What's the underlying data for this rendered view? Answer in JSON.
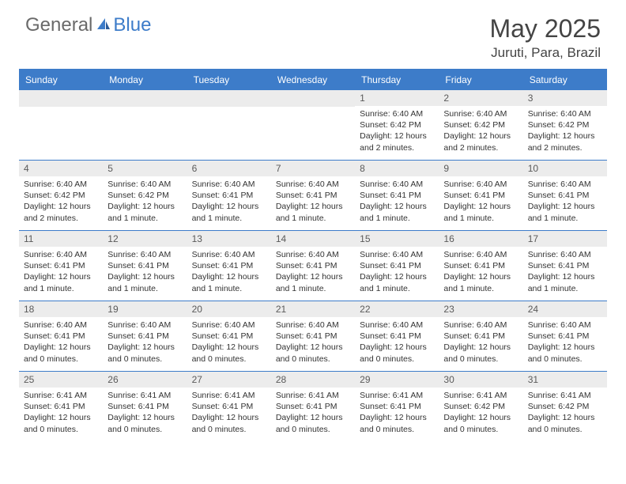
{
  "logo": {
    "text1": "General",
    "text2": "Blue"
  },
  "title": "May 2025",
  "location": "Juruti, Para, Brazil",
  "colors": {
    "accent": "#3d7cc9",
    "header_text": "#444444",
    "logo_gray": "#6a6a6a",
    "day_bg": "#ececec",
    "body_text": "#333333",
    "background": "#ffffff"
  },
  "weekdays": [
    "Sunday",
    "Monday",
    "Tuesday",
    "Wednesday",
    "Thursday",
    "Friday",
    "Saturday"
  ],
  "weeks": [
    [
      {
        "num": "",
        "sunrise": "",
        "sunset": "",
        "daylight1": "",
        "daylight2": ""
      },
      {
        "num": "",
        "sunrise": "",
        "sunset": "",
        "daylight1": "",
        "daylight2": ""
      },
      {
        "num": "",
        "sunrise": "",
        "sunset": "",
        "daylight1": "",
        "daylight2": ""
      },
      {
        "num": "",
        "sunrise": "",
        "sunset": "",
        "daylight1": "",
        "daylight2": ""
      },
      {
        "num": "1",
        "sunrise": "Sunrise: 6:40 AM",
        "sunset": "Sunset: 6:42 PM",
        "daylight1": "Daylight: 12 hours",
        "daylight2": "and 2 minutes."
      },
      {
        "num": "2",
        "sunrise": "Sunrise: 6:40 AM",
        "sunset": "Sunset: 6:42 PM",
        "daylight1": "Daylight: 12 hours",
        "daylight2": "and 2 minutes."
      },
      {
        "num": "3",
        "sunrise": "Sunrise: 6:40 AM",
        "sunset": "Sunset: 6:42 PM",
        "daylight1": "Daylight: 12 hours",
        "daylight2": "and 2 minutes."
      }
    ],
    [
      {
        "num": "4",
        "sunrise": "Sunrise: 6:40 AM",
        "sunset": "Sunset: 6:42 PM",
        "daylight1": "Daylight: 12 hours",
        "daylight2": "and 2 minutes."
      },
      {
        "num": "5",
        "sunrise": "Sunrise: 6:40 AM",
        "sunset": "Sunset: 6:42 PM",
        "daylight1": "Daylight: 12 hours",
        "daylight2": "and 1 minute."
      },
      {
        "num": "6",
        "sunrise": "Sunrise: 6:40 AM",
        "sunset": "Sunset: 6:41 PM",
        "daylight1": "Daylight: 12 hours",
        "daylight2": "and 1 minute."
      },
      {
        "num": "7",
        "sunrise": "Sunrise: 6:40 AM",
        "sunset": "Sunset: 6:41 PM",
        "daylight1": "Daylight: 12 hours",
        "daylight2": "and 1 minute."
      },
      {
        "num": "8",
        "sunrise": "Sunrise: 6:40 AM",
        "sunset": "Sunset: 6:41 PM",
        "daylight1": "Daylight: 12 hours",
        "daylight2": "and 1 minute."
      },
      {
        "num": "9",
        "sunrise": "Sunrise: 6:40 AM",
        "sunset": "Sunset: 6:41 PM",
        "daylight1": "Daylight: 12 hours",
        "daylight2": "and 1 minute."
      },
      {
        "num": "10",
        "sunrise": "Sunrise: 6:40 AM",
        "sunset": "Sunset: 6:41 PM",
        "daylight1": "Daylight: 12 hours",
        "daylight2": "and 1 minute."
      }
    ],
    [
      {
        "num": "11",
        "sunrise": "Sunrise: 6:40 AM",
        "sunset": "Sunset: 6:41 PM",
        "daylight1": "Daylight: 12 hours",
        "daylight2": "and 1 minute."
      },
      {
        "num": "12",
        "sunrise": "Sunrise: 6:40 AM",
        "sunset": "Sunset: 6:41 PM",
        "daylight1": "Daylight: 12 hours",
        "daylight2": "and 1 minute."
      },
      {
        "num": "13",
        "sunrise": "Sunrise: 6:40 AM",
        "sunset": "Sunset: 6:41 PM",
        "daylight1": "Daylight: 12 hours",
        "daylight2": "and 1 minute."
      },
      {
        "num": "14",
        "sunrise": "Sunrise: 6:40 AM",
        "sunset": "Sunset: 6:41 PM",
        "daylight1": "Daylight: 12 hours",
        "daylight2": "and 1 minute."
      },
      {
        "num": "15",
        "sunrise": "Sunrise: 6:40 AM",
        "sunset": "Sunset: 6:41 PM",
        "daylight1": "Daylight: 12 hours",
        "daylight2": "and 1 minute."
      },
      {
        "num": "16",
        "sunrise": "Sunrise: 6:40 AM",
        "sunset": "Sunset: 6:41 PM",
        "daylight1": "Daylight: 12 hours",
        "daylight2": "and 1 minute."
      },
      {
        "num": "17",
        "sunrise": "Sunrise: 6:40 AM",
        "sunset": "Sunset: 6:41 PM",
        "daylight1": "Daylight: 12 hours",
        "daylight2": "and 1 minute."
      }
    ],
    [
      {
        "num": "18",
        "sunrise": "Sunrise: 6:40 AM",
        "sunset": "Sunset: 6:41 PM",
        "daylight1": "Daylight: 12 hours",
        "daylight2": "and 0 minutes."
      },
      {
        "num": "19",
        "sunrise": "Sunrise: 6:40 AM",
        "sunset": "Sunset: 6:41 PM",
        "daylight1": "Daylight: 12 hours",
        "daylight2": "and 0 minutes."
      },
      {
        "num": "20",
        "sunrise": "Sunrise: 6:40 AM",
        "sunset": "Sunset: 6:41 PM",
        "daylight1": "Daylight: 12 hours",
        "daylight2": "and 0 minutes."
      },
      {
        "num": "21",
        "sunrise": "Sunrise: 6:40 AM",
        "sunset": "Sunset: 6:41 PM",
        "daylight1": "Daylight: 12 hours",
        "daylight2": "and 0 minutes."
      },
      {
        "num": "22",
        "sunrise": "Sunrise: 6:40 AM",
        "sunset": "Sunset: 6:41 PM",
        "daylight1": "Daylight: 12 hours",
        "daylight2": "and 0 minutes."
      },
      {
        "num": "23",
        "sunrise": "Sunrise: 6:40 AM",
        "sunset": "Sunset: 6:41 PM",
        "daylight1": "Daylight: 12 hours",
        "daylight2": "and 0 minutes."
      },
      {
        "num": "24",
        "sunrise": "Sunrise: 6:40 AM",
        "sunset": "Sunset: 6:41 PM",
        "daylight1": "Daylight: 12 hours",
        "daylight2": "and 0 minutes."
      }
    ],
    [
      {
        "num": "25",
        "sunrise": "Sunrise: 6:41 AM",
        "sunset": "Sunset: 6:41 PM",
        "daylight1": "Daylight: 12 hours",
        "daylight2": "and 0 minutes."
      },
      {
        "num": "26",
        "sunrise": "Sunrise: 6:41 AM",
        "sunset": "Sunset: 6:41 PM",
        "daylight1": "Daylight: 12 hours",
        "daylight2": "and 0 minutes."
      },
      {
        "num": "27",
        "sunrise": "Sunrise: 6:41 AM",
        "sunset": "Sunset: 6:41 PM",
        "daylight1": "Daylight: 12 hours",
        "daylight2": "and 0 minutes."
      },
      {
        "num": "28",
        "sunrise": "Sunrise: 6:41 AM",
        "sunset": "Sunset: 6:41 PM",
        "daylight1": "Daylight: 12 hours",
        "daylight2": "and 0 minutes."
      },
      {
        "num": "29",
        "sunrise": "Sunrise: 6:41 AM",
        "sunset": "Sunset: 6:41 PM",
        "daylight1": "Daylight: 12 hours",
        "daylight2": "and 0 minutes."
      },
      {
        "num": "30",
        "sunrise": "Sunrise: 6:41 AM",
        "sunset": "Sunset: 6:42 PM",
        "daylight1": "Daylight: 12 hours",
        "daylight2": "and 0 minutes."
      },
      {
        "num": "31",
        "sunrise": "Sunrise: 6:41 AM",
        "sunset": "Sunset: 6:42 PM",
        "daylight1": "Daylight: 12 hours",
        "daylight2": "and 0 minutes."
      }
    ]
  ]
}
